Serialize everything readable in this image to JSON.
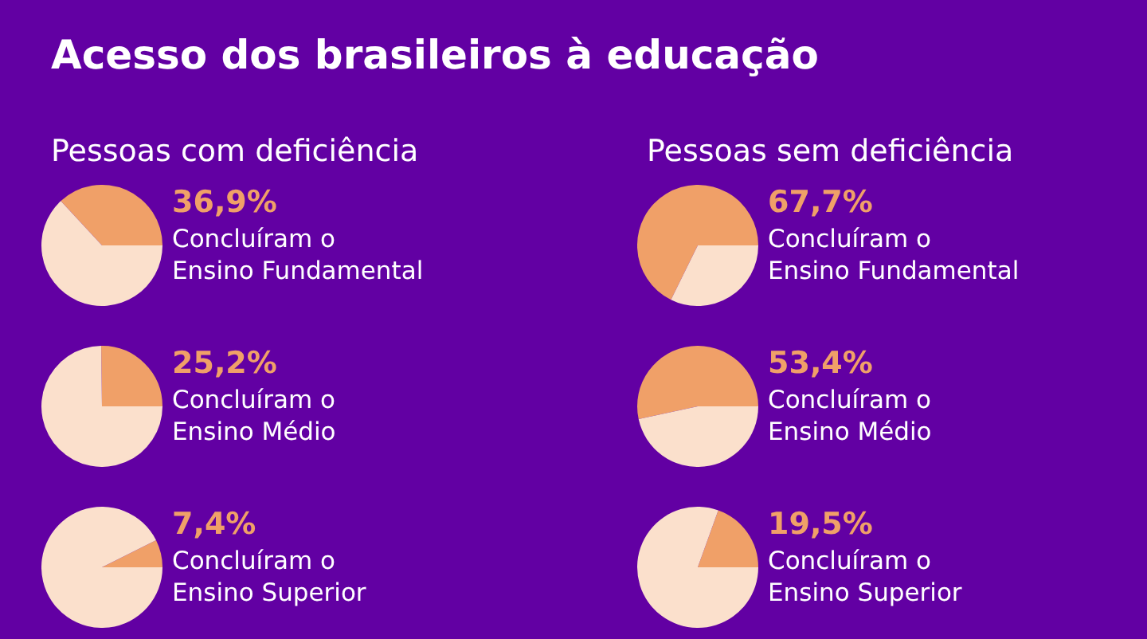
{
  "chart_data": [
    {
      "type": "pie",
      "title": "Acesso dos brasileiros à educação",
      "subtitle": "Pessoas com deficiência",
      "categories": [
        "Concluíram o\nEnsino Fundamental",
        null
      ],
      "values": [
        36.9,
        63.1
      ],
      "colors": [
        "#f0a068",
        "#fbe0cc"
      ],
      "value_labels": [
        "36,9%",
        null
      ]
    },
    {
      "type": "pie",
      "categories": [
        "Concluíram o\nEnsino Médio",
        null
      ],
      "values": [
        25.2,
        74.8
      ],
      "colors": [
        "#f0a068",
        "#fbe0cc"
      ],
      "value_labels": [
        "25,2%",
        null
      ]
    },
    {
      "type": "pie",
      "categories": [
        "Concluíram o\nEnsino Superior",
        null
      ],
      "values": [
        7.4,
        92.6
      ],
      "colors": [
        "#f0a068",
        "#fbe0cc"
      ],
      "value_labels": [
        "7,4%",
        null
      ]
    },
    {
      "type": "pie",
      "subtitle": "Pessoas sem deficiência",
      "categories": [
        "Concluíram o\nEnsino Fundamental",
        null
      ],
      "values": [
        67.7,
        32.3
      ],
      "colors": [
        "#f0a068",
        "#fbe0cc"
      ],
      "value_labels": [
        "67,7%",
        null
      ]
    },
    {
      "type": "pie",
      "categories": [
        "Concluíram o\nEnsino Médio",
        null
      ],
      "values": [
        53.4,
        46.6
      ],
      "colors": [
        "#f0a068",
        "#fbe0cc"
      ],
      "value_labels": [
        "53,4%",
        null
      ]
    },
    {
      "type": "pie",
      "categories": [
        "Concluíram o\nEnsino Superior",
        null
      ],
      "values": [
        19.5,
        80.5
      ],
      "colors": [
        "#f0a068",
        "#fbe0cc"
      ],
      "value_labels": [
        "19,5%",
        null
      ]
    }
  ]
}
